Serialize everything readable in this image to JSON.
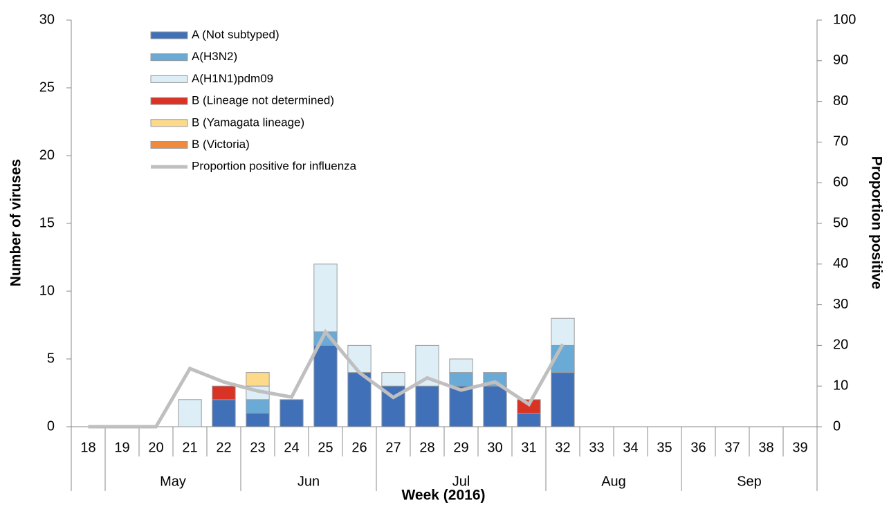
{
  "chart_data": {
    "type": "stacked-bar-line",
    "x_title": "Week (2016)",
    "y_title": "Number of viruses",
    "y2_title": "Proportion positive",
    "categories": [
      "18",
      "19",
      "20",
      "21",
      "22",
      "23",
      "24",
      "25",
      "26",
      "27",
      "28",
      "29",
      "30",
      "31",
      "32",
      "33",
      "34",
      "35",
      "36",
      "37",
      "38",
      "39"
    ],
    "months": [
      null,
      "May",
      "May",
      "May",
      "May",
      "Jun",
      "Jun",
      "Jun",
      "Jun",
      "Jul",
      "Jul",
      "Jul",
      "Jul",
      "Jul",
      "Aug",
      "Aug",
      "Aug",
      "Aug",
      "Sep",
      "Sep",
      "Sep",
      "Sep"
    ],
    "ylim": [
      0,
      30
    ],
    "yticks": [
      0,
      5,
      10,
      15,
      20,
      25,
      30
    ],
    "y2lim": [
      0,
      100
    ],
    "y2ticks": [
      0,
      10,
      20,
      30,
      40,
      50,
      60,
      70,
      80,
      90,
      100
    ],
    "series": [
      {
        "name": "A (Not subtyped)",
        "color": "#3f70b8",
        "values": [
          0,
          0,
          0,
          0,
          2,
          1,
          2,
          6,
          4,
          3,
          3,
          3,
          3,
          1,
          4,
          0,
          0,
          0,
          0,
          0,
          0,
          0
        ]
      },
      {
        "name": "A(H3N2)",
        "color": "#6aaad6",
        "values": [
          0,
          0,
          0,
          0,
          0,
          1,
          0,
          1,
          0,
          0,
          0,
          1,
          1,
          0,
          2,
          0,
          0,
          0,
          0,
          0,
          0,
          0
        ]
      },
      {
        "name": "A(H1N1)pdm09",
        "color": "#ddeef7",
        "values": [
          0,
          0,
          0,
          2,
          0,
          1,
          0,
          5,
          2,
          1,
          3,
          1,
          0,
          0,
          2,
          0,
          0,
          0,
          0,
          0,
          0,
          0
        ]
      },
      {
        "name": "B (Lineage not determined)",
        "color": "#d93325",
        "values": [
          0,
          0,
          0,
          0,
          1,
          0,
          0,
          0,
          0,
          0,
          0,
          0,
          0,
          1,
          0,
          0,
          0,
          0,
          0,
          0,
          0,
          0
        ]
      },
      {
        "name": "B (Yamagata lineage)",
        "color": "#fdd98a",
        "values": [
          0,
          0,
          0,
          0,
          0,
          1,
          0,
          0,
          0,
          0,
          0,
          0,
          0,
          0,
          0,
          0,
          0,
          0,
          0,
          0,
          0,
          0
        ]
      },
      {
        "name": "B (Victoria)",
        "color": "#f08a3c",
        "values": [
          0,
          0,
          0,
          0,
          0,
          0,
          0,
          0,
          0,
          0,
          0,
          0,
          0,
          0,
          0,
          0,
          0,
          0,
          0,
          0,
          0,
          0
        ]
      },
      {
        "name": "Proportion positive for influenza",
        "type": "line",
        "axis": "y2",
        "color": "#bfbfbf",
        "values": [
          0,
          0,
          0,
          14.3,
          11,
          8.8,
          7.3,
          23.3,
          13.3,
          7.2,
          12,
          9,
          11,
          5.5,
          20.3,
          null,
          null,
          null,
          null,
          null,
          null,
          null
        ]
      }
    ]
  }
}
